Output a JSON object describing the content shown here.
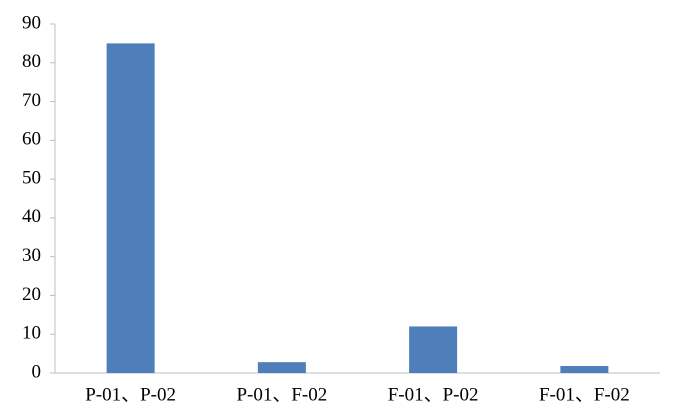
{
  "chart_data": {
    "type": "bar",
    "categories": [
      "P-01、P-02",
      "P-01、F-02",
      "F-01、P-02",
      "F-01、F-02"
    ],
    "values": [
      85,
      2.8,
      12,
      1.8
    ],
    "color": "#4f7fba",
    "ylim": [
      0,
      90
    ],
    "yticks": [
      0,
      10,
      20,
      30,
      40,
      50,
      60,
      70,
      80,
      90
    ],
    "grid": false
  }
}
